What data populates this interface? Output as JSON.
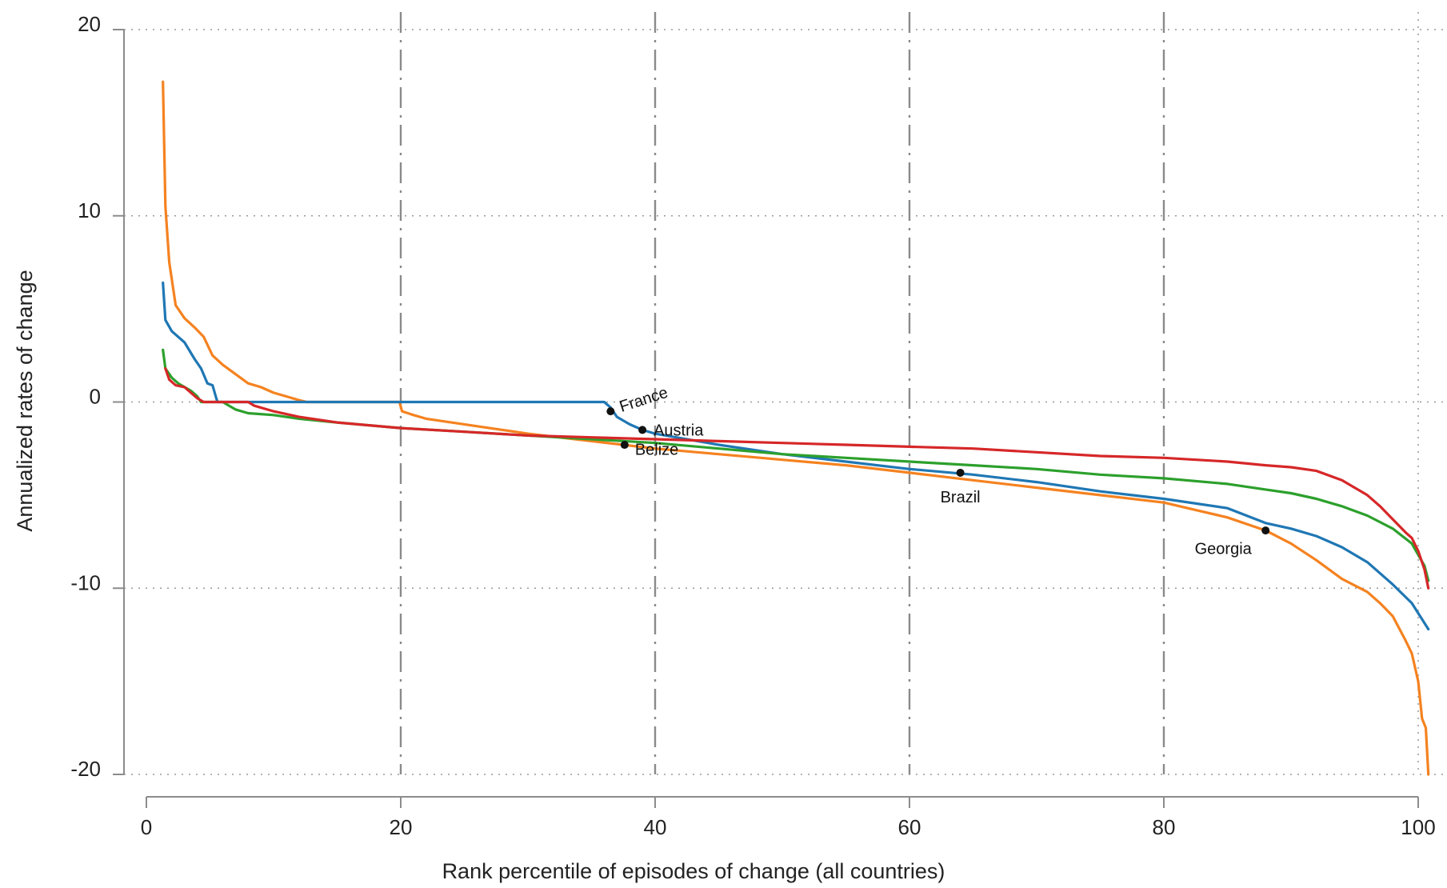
{
  "chart_data": {
    "type": "line",
    "xlabel": "Rank percentile of episodes of change (all countries)",
    "ylabel": "Annualized rates of change",
    "xlim": [
      0,
      100
    ],
    "ylim": [
      -20,
      20
    ],
    "xticks": [
      0,
      20,
      40,
      60,
      80,
      100
    ],
    "yticks": [
      -20,
      -10,
      0,
      10,
      20
    ],
    "grid": {
      "horizontal": "dotted",
      "vertical": "dashed"
    },
    "series": [
      {
        "color": "#f58220",
        "x": [
          1.3,
          1.5,
          1.8,
          2.3,
          3.0,
          3.8,
          4.5,
          5.2,
          6.0,
          7.0,
          8.0,
          9.0,
          10.0,
          11.0,
          12.0,
          12.6,
          12.7,
          14.0,
          19.9,
          20.1,
          21.0,
          22.0,
          25.0,
          28.0,
          30.0,
          35.0,
          40.0,
          45.0,
          50.0,
          55.0,
          60.0,
          65.0,
          70.0,
          75.0,
          80.0,
          85.0,
          88.0,
          90.0,
          92.0,
          94.0,
          96.0,
          97.0,
          98.0,
          99.0,
          99.5,
          100.0,
          100.3,
          100.6,
          100.8
        ],
        "y": [
          17.2,
          10.5,
          7.5,
          5.2,
          4.5,
          4.0,
          3.5,
          2.5,
          2.0,
          1.5,
          1.0,
          0.8,
          0.5,
          0.3,
          0.1,
          0.0,
          0.0,
          0.0,
          0.0,
          -0.5,
          -0.7,
          -0.9,
          -1.2,
          -1.5,
          -1.7,
          -2.1,
          -2.5,
          -2.8,
          -3.1,
          -3.4,
          -3.8,
          -4.2,
          -4.6,
          -5.0,
          -5.4,
          -6.2,
          -6.9,
          -7.6,
          -8.5,
          -9.5,
          -10.2,
          -10.8,
          -11.5,
          -12.8,
          -13.5,
          -15.0,
          -17.0,
          -17.5,
          -20.0
        ]
      },
      {
        "color": "#1f77b4",
        "x": [
          1.3,
          1.5,
          2.0,
          3.0,
          3.8,
          4.3,
          4.8,
          5.2,
          5.5,
          5.6,
          8.0,
          15.0,
          20.0,
          30.0,
          36.0,
          36.5,
          37.0,
          38.0,
          39.0,
          40.0,
          45.0,
          50.0,
          55.0,
          60.0,
          65.0,
          70.0,
          75.0,
          80.0,
          85.0,
          88.0,
          90.0,
          92.0,
          94.0,
          96.0,
          98.0,
          99.5,
          100.8
        ],
        "y": [
          6.4,
          4.4,
          3.8,
          3.2,
          2.3,
          1.8,
          1.0,
          0.9,
          0.2,
          0.0,
          0.0,
          0.0,
          0.0,
          0.0,
          0.0,
          -0.3,
          -0.8,
          -1.2,
          -1.5,
          -1.7,
          -2.3,
          -2.8,
          -3.2,
          -3.6,
          -3.9,
          -4.3,
          -4.8,
          -5.2,
          -5.7,
          -6.5,
          -6.8,
          -7.2,
          -7.8,
          -8.6,
          -9.8,
          -10.8,
          -12.2
        ]
      },
      {
        "color": "#2ca02c",
        "x": [
          1.3,
          1.5,
          2.0,
          2.5,
          3.0,
          3.5,
          4.0,
          4.3,
          6.0,
          7.0,
          8.0,
          10.0,
          12.0,
          15.0,
          20.0,
          25.0,
          30.0,
          35.0,
          40.0,
          45.0,
          50.0,
          55.0,
          60.0,
          65.0,
          70.0,
          75.0,
          80.0,
          85.0,
          88.0,
          90.0,
          92.0,
          94.0,
          96.0,
          98.0,
          99.5,
          100.5,
          100.8
        ],
        "y": [
          2.8,
          1.8,
          1.3,
          1.0,
          0.8,
          0.6,
          0.3,
          0.0,
          0.0,
          -0.4,
          -0.6,
          -0.7,
          -0.9,
          -1.1,
          -1.4,
          -1.6,
          -1.8,
          -2.0,
          -2.2,
          -2.5,
          -2.8,
          -3.0,
          -3.2,
          -3.4,
          -3.6,
          -3.9,
          -4.1,
          -4.4,
          -4.7,
          -4.9,
          -5.2,
          -5.6,
          -6.1,
          -6.8,
          -7.6,
          -8.8,
          -9.6
        ]
      },
      {
        "color": "#d62728",
        "x": [
          1.5,
          1.8,
          2.3,
          3.0,
          3.5,
          4.0,
          4.5,
          8.0,
          8.5,
          10.0,
          12.0,
          15.0,
          20.0,
          25.0,
          30.0,
          35.0,
          40.0,
          45.0,
          50.0,
          55.0,
          60.0,
          65.0,
          70.0,
          75.0,
          80.0,
          85.0,
          88.0,
          90.0,
          92.0,
          94.0,
          96.0,
          97.0,
          98.0,
          99.0,
          99.5,
          100.0,
          100.5,
          100.8
        ],
        "y": [
          1.8,
          1.2,
          0.9,
          0.8,
          0.5,
          0.2,
          0.0,
          0.0,
          -0.2,
          -0.5,
          -0.8,
          -1.1,
          -1.4,
          -1.6,
          -1.8,
          -1.9,
          -2.0,
          -2.1,
          -2.2,
          -2.3,
          -2.4,
          -2.5,
          -2.7,
          -2.9,
          -3.0,
          -3.2,
          -3.4,
          -3.5,
          -3.7,
          -4.2,
          -5.0,
          -5.6,
          -6.3,
          -7.0,
          -7.3,
          -8.0,
          -9.0,
          -10.0
        ]
      }
    ],
    "annotations": [
      {
        "label": "France",
        "x": 36.5,
        "y": -0.5,
        "dx": 12,
        "dy": -4,
        "rotate": -18,
        "anchor": "start"
      },
      {
        "label": "Austria",
        "x": 39.0,
        "y": -1.5,
        "dx": 14,
        "dy": 2,
        "rotate": 0,
        "anchor": "start"
      },
      {
        "label": "Belize",
        "x": 37.6,
        "y": -2.3,
        "dx": 13,
        "dy": 7,
        "rotate": 0,
        "anchor": "start"
      },
      {
        "label": "Brazil",
        "x": 64.0,
        "y": -3.8,
        "dx": 0,
        "dy": 32,
        "rotate": 0,
        "anchor": "middle"
      },
      {
        "label": "Georgia",
        "x": 88.0,
        "y": -6.9,
        "dx": -53,
        "dy": 24,
        "rotate": 0,
        "anchor": "middle"
      }
    ]
  }
}
